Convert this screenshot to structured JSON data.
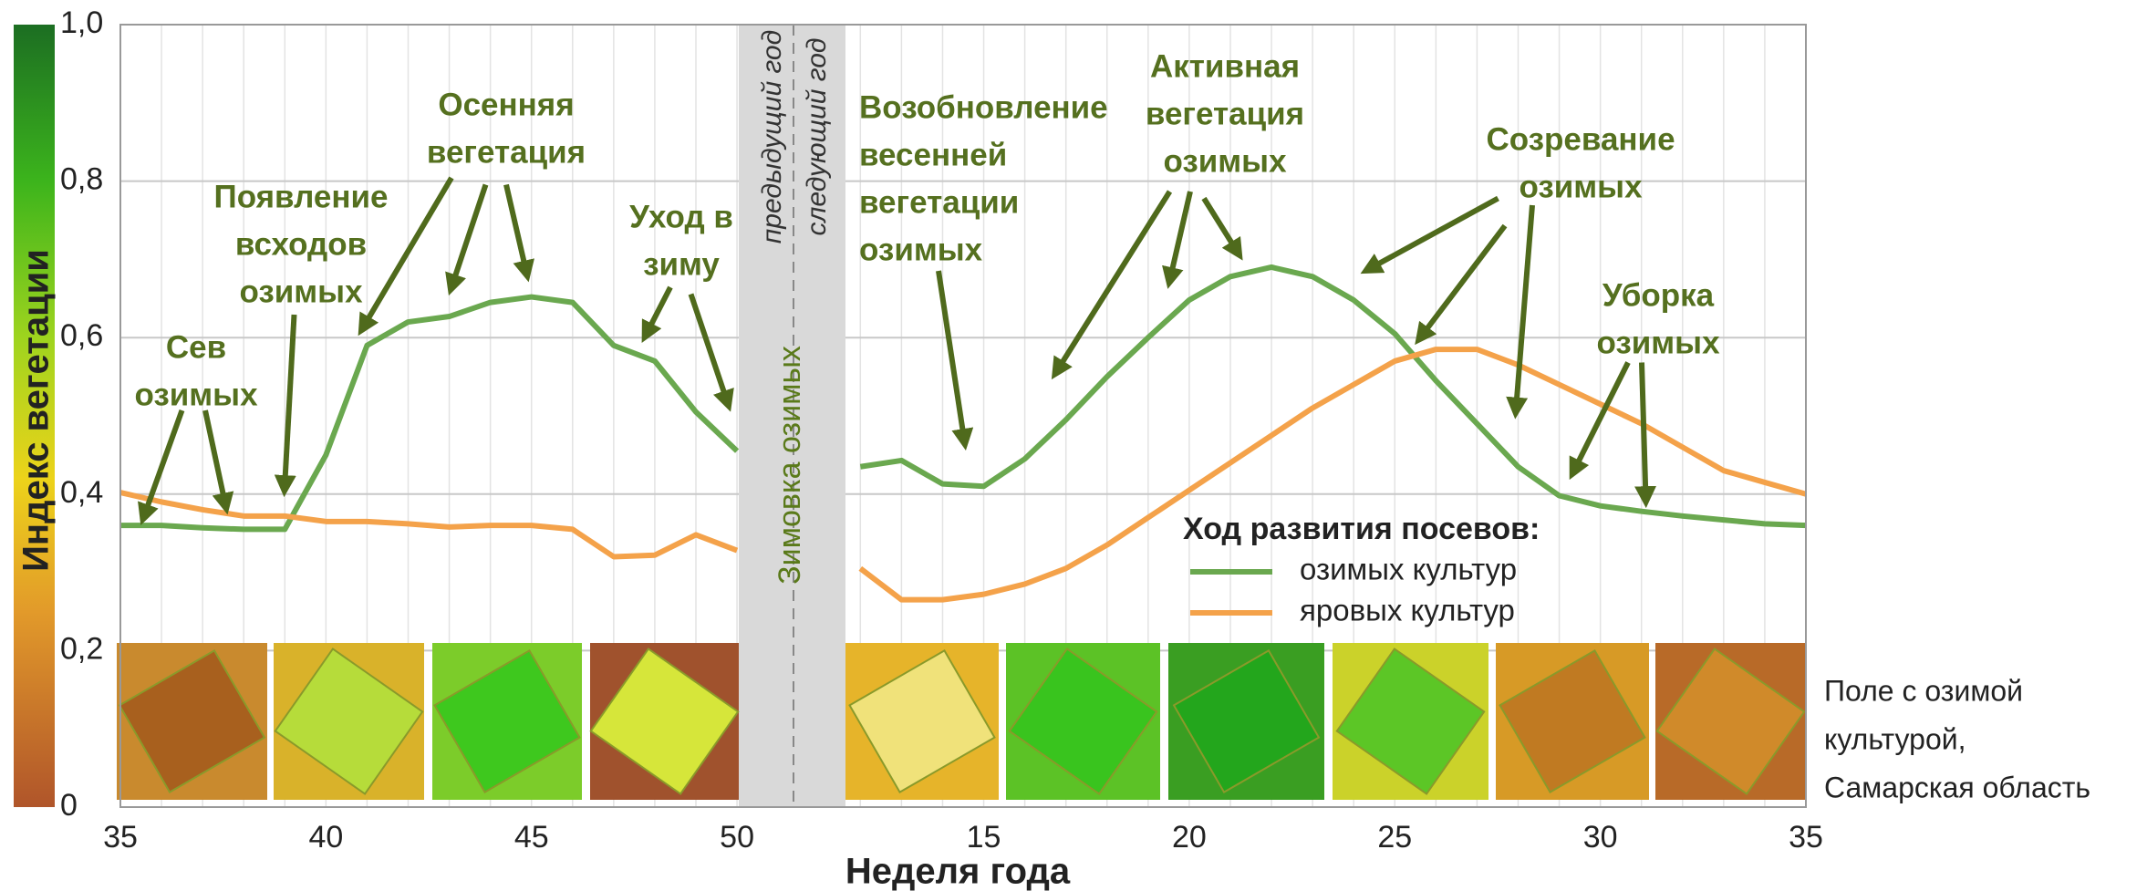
{
  "chart_data": {
    "type": "line",
    "x_label": "Неделя года",
    "y_label": "Индекс вегетации",
    "categories": [
      "35",
      null,
      null,
      null,
      null,
      "40",
      null,
      null,
      null,
      null,
      "45",
      null,
      null,
      null,
      null,
      "50",
      null,
      null,
      null,
      null,
      null,
      "15",
      null,
      null,
      null,
      null,
      "20",
      null,
      null,
      null,
      null,
      "25",
      null,
      null,
      null,
      null,
      "30",
      null,
      null,
      null,
      null,
      "35"
    ],
    "series": [
      {
        "name": "озимых культур",
        "color": "#6aa84f",
        "values": [
          0.36,
          0.36,
          0.357,
          0.355,
          0.355,
          0.45,
          0.59,
          0.62,
          0.627,
          0.645,
          0.652,
          0.645,
          0.59,
          0.57,
          0.505,
          0.455,
          null,
          null,
          0.435,
          0.443,
          0.413,
          0.41,
          0.445,
          0.495,
          0.55,
          0.6,
          0.648,
          0.678,
          0.69,
          0.678,
          0.648,
          0.605,
          0.545,
          0.49,
          0.435,
          0.398,
          0.385,
          0.378,
          0.372,
          0.367,
          0.362,
          0.36
        ]
      },
      {
        "name": "яровых культур",
        "color": "#f4a24a",
        "values": [
          0.402,
          0.39,
          0.38,
          0.372,
          0.372,
          0.365,
          0.365,
          0.362,
          0.358,
          0.36,
          0.36,
          0.355,
          0.32,
          0.322,
          0.348,
          0.328,
          null,
          null,
          0.305,
          0.265,
          0.265,
          0.272,
          0.285,
          0.305,
          0.335,
          0.37,
          0.405,
          0.44,
          0.475,
          0.51,
          0.54,
          0.57,
          0.585,
          0.585,
          0.565,
          0.54,
          0.515,
          0.49,
          0.46,
          0.43,
          0.415,
          0.4
        ]
      }
    ],
    "ylim": [
      0,
      1
    ],
    "yticks": [
      0,
      {
        "value": 0.2,
        "label": "0,2"
      },
      {
        "value": 0.4,
        "label": "0,4"
      },
      {
        "value": 0.6,
        "label": "0,6"
      },
      {
        "value": 0.8,
        "label": "0,8"
      },
      {
        "value": 1,
        "label": "1,0"
      }
    ],
    "grid": true,
    "legend_title": "Ход развития посевов:",
    "winter_band": {
      "label": "Зимовка озимых",
      "left_label": "предыдущий год",
      "right_label": "следующий год"
    },
    "annotations": [
      {
        "lines": [
          "Сев",
          "озимых"
        ]
      },
      {
        "lines": [
          "Появление",
          "всходов",
          "озимых"
        ]
      },
      {
        "lines": [
          "Осенняя",
          "вегетация"
        ]
      },
      {
        "lines": [
          "Уход в",
          "зиму"
        ]
      },
      {
        "lines": [
          "Возобновление",
          "весенней",
          "вегетации",
          "озимых"
        ]
      },
      {
        "lines": [
          "Активная",
          "вегетация",
          "озимых"
        ]
      },
      {
        "lines": [
          "Созревание",
          "озимых"
        ]
      },
      {
        "lines": [
          "Уборка",
          "озимых"
        ]
      }
    ],
    "side_caption": [
      "Поле с озимой",
      "культурой,",
      "Самарская область"
    ]
  }
}
